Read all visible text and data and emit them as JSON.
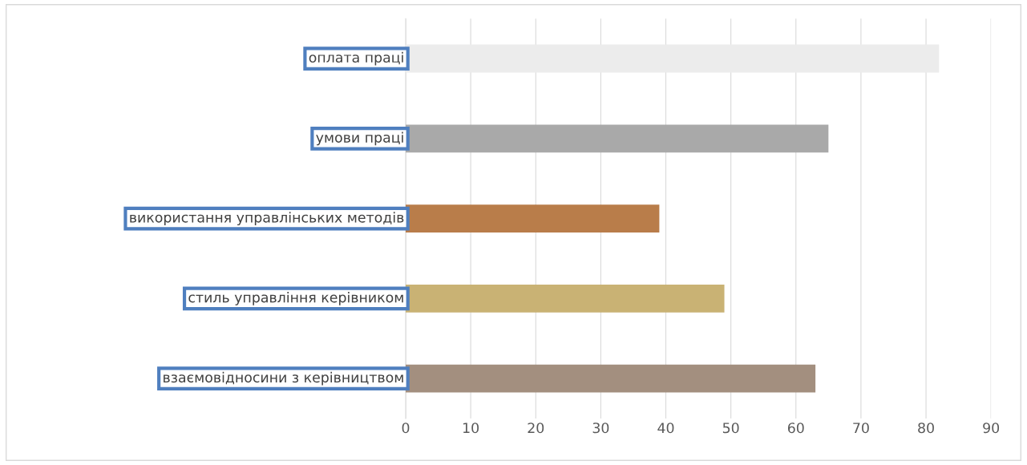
{
  "chart_data": {
    "type": "bar",
    "orientation": "horizontal",
    "categories": [
      "оплата праці",
      "умови праці",
      "використання управлінських методів",
      "стиль управління керівником",
      "взаємовідносини з керівництвом"
    ],
    "values": [
      82,
      65,
      39,
      49,
      63
    ],
    "colors": [
      "#ececec",
      "#a9a9a9",
      "#b97d4a",
      "#c9b274",
      "#a38f7f"
    ],
    "xlim": [
      0,
      90
    ],
    "xticks": [
      0,
      10,
      20,
      30,
      40,
      50,
      60,
      70,
      80,
      90
    ],
    "grid": "x"
  }
}
